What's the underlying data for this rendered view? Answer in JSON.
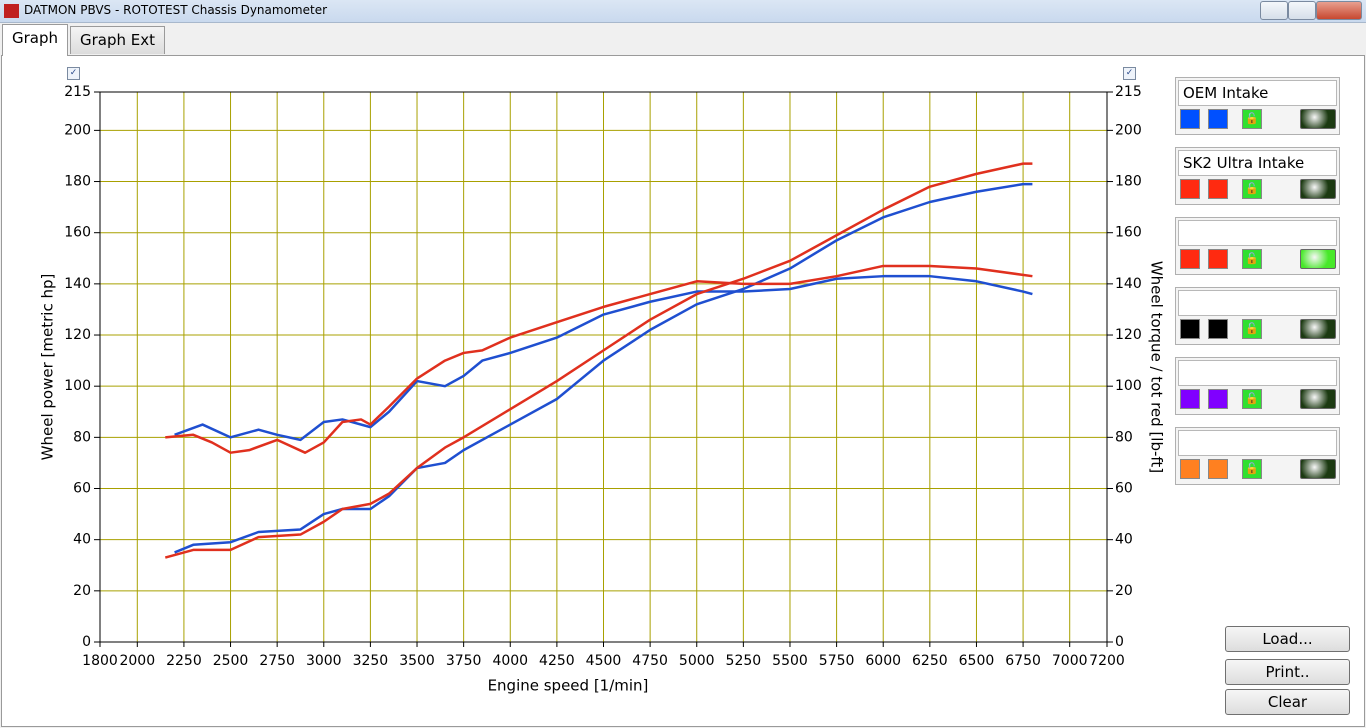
{
  "window": {
    "title": "DATMON PBVS - ROTOTEST Chassis Dynamometer"
  },
  "tabs": [
    "Graph",
    "Graph Ext"
  ],
  "buttons": [
    "Load...",
    "Print..",
    "Clear"
  ],
  "legend_panel": [
    {
      "name": "OEM Intake",
      "color": "#0050ff",
      "led": "#1c3a12"
    },
    {
      "name": "SK2 Ultra Intake",
      "color": "#ff2a10",
      "led": "#1c3a12"
    },
    {
      "color": "#ff2a10",
      "led": "#48e82a"
    },
    {
      "color": "#000000",
      "led": "#1c3a12"
    },
    {
      "color": "#8000ff",
      "led": "#1c3a12"
    },
    {
      "color": "#ff8020",
      "led": "#1c3a12"
    }
  ],
  "chart_data": {
    "type": "line",
    "xlabel": "Engine speed [1/min]",
    "ylabel": "Wheel power [metric hp]",
    "y2label": "Wheel torque / tot red [lb-ft]",
    "xlim": [
      1800,
      7200
    ],
    "xticks": [
      1800,
      2000,
      2250,
      2500,
      2750,
      3000,
      3250,
      3500,
      3750,
      4000,
      4250,
      4500,
      4750,
      5000,
      5250,
      5500,
      5750,
      6000,
      6250,
      6500,
      6750,
      7000,
      7200
    ],
    "ylim": [
      0,
      215
    ],
    "yticks": [
      0,
      20,
      40,
      60,
      80,
      100,
      120,
      140,
      160,
      180,
      200,
      215
    ],
    "y2lim": [
      0,
      215
    ],
    "y2ticks": [
      0,
      20,
      40,
      60,
      80,
      100,
      120,
      140,
      160,
      180,
      200,
      215
    ],
    "grid": true,
    "grid_color": "#a8a000",
    "series": [
      {
        "color": "#1f4fd0",
        "x": [
          2200,
          2350,
          2500,
          2650,
          2750,
          2875,
          3000,
          3100,
          3250,
          3350,
          3500,
          3650,
          3750,
          3850,
          4000,
          4250,
          4500,
          4750,
          5000,
          5250,
          5500,
          5750,
          6000,
          6250,
          6500,
          6750,
          6800
        ],
        "values": [
          81,
          85,
          80,
          83,
          81,
          79,
          86,
          87,
          84,
          90,
          102,
          100,
          104,
          110,
          113,
          119,
          128,
          133,
          137,
          137,
          138,
          142,
          143,
          143,
          141,
          137,
          136
        ]
      },
      {
        "color": "#1f4fd0",
        "x": [
          2200,
          2300,
          2500,
          2650,
          2875,
          3000,
          3100,
          3250,
          3350,
          3500,
          3650,
          3750,
          4000,
          4250,
          4500,
          4750,
          5000,
          5250,
          5500,
          5750,
          6000,
          6250,
          6500,
          6750,
          6800
        ],
        "values": [
          35,
          38,
          39,
          43,
          44,
          50,
          52,
          52,
          57,
          68,
          70,
          75,
          85,
          95,
          110,
          122,
          132,
          138,
          146,
          157,
          166,
          172,
          176,
          179,
          179
        ]
      },
      {
        "color": "#e0301e",
        "x": [
          2150,
          2300,
          2400,
          2500,
          2600,
          2750,
          2900,
          3000,
          3100,
          3200,
          3250,
          3350,
          3500,
          3650,
          3750,
          3850,
          4000,
          4250,
          4500,
          4750,
          5000,
          5250,
          5500,
          5750,
          6000,
          6250,
          6500,
          6800
        ],
        "values": [
          80,
          81,
          78,
          74,
          75,
          79,
          74,
          78,
          86,
          87,
          85,
          92,
          103,
          110,
          113,
          114,
          119,
          125,
          131,
          136,
          141,
          140,
          140,
          143,
          147,
          147,
          146,
          143
        ]
      },
      {
        "color": "#e0301e",
        "x": [
          2150,
          2300,
          2500,
          2650,
          2875,
          3000,
          3100,
          3250,
          3350,
          3500,
          3650,
          3750,
          4000,
          4250,
          4500,
          4750,
          5000,
          5250,
          5500,
          5750,
          6000,
          6250,
          6500,
          6750,
          6800
        ],
        "values": [
          33,
          36,
          36,
          41,
          42,
          47,
          52,
          54,
          58,
          68,
          76,
          80,
          91,
          102,
          114,
          126,
          136,
          142,
          149,
          159,
          169,
          178,
          183,
          187,
          187
        ]
      }
    ]
  }
}
